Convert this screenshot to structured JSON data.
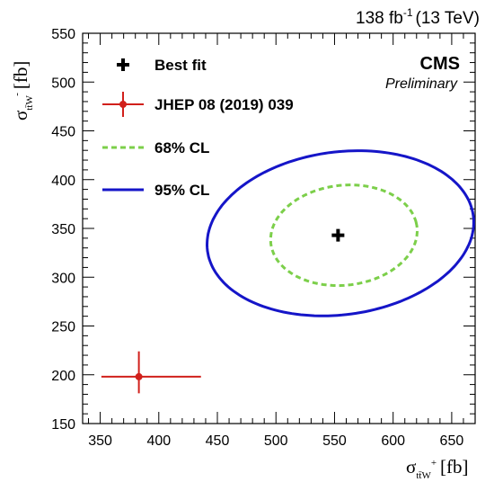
{
  "header": {
    "lumi_value": "138 fb",
    "lumi_exp": "-1",
    "lumi_energy": "(13 TeV)"
  },
  "labels": {
    "cms": "CMS",
    "preliminary": "Preliminary",
    "x_symbol": "σ",
    "x_sub": "tt̄W",
    "x_sup": "+",
    "x_unit": "[fb]",
    "y_symbol": "σ",
    "y_sub": "tt̄W",
    "y_sup": "-",
    "y_unit": "[fb]"
  },
  "colors": {
    "best_fit": "#000000",
    "reference": "#d1201b",
    "cl68": "#7ccf4a",
    "cl95": "#1515c8"
  },
  "chart_data": {
    "type": "scatter",
    "xlim": [
      335,
      670
    ],
    "ylim": [
      150,
      550
    ],
    "xticks": [
      350,
      400,
      450,
      500,
      550,
      600,
      650
    ],
    "yticks": [
      150,
      200,
      250,
      300,
      350,
      400,
      450,
      500,
      550
    ],
    "grid": false,
    "legend_position": "top-left",
    "legend": [
      {
        "label": "Best fit",
        "marker": "cross"
      },
      {
        "label": "JHEP 08 (2019) 039",
        "marker": "point-errorbar"
      },
      {
        "label": "68% CL",
        "marker": "dashed-line"
      },
      {
        "label": "95% CL",
        "marker": "solid-line"
      }
    ],
    "best_fit": {
      "x": 553,
      "y": 343
    },
    "reference": {
      "x": 383,
      "y": 198,
      "x_range": [
        351,
        436
      ],
      "y_range": [
        181,
        224
      ]
    },
    "contours": [
      {
        "name": "68% CL",
        "style": "dashed",
        "center": [
          558,
          343
        ],
        "radii": [
          63,
          51
        ],
        "tilt_deg": 12
      },
      {
        "name": "95% CL",
        "style": "solid",
        "center": [
          555,
          345
        ],
        "radii": [
          115,
          83
        ],
        "tilt_deg": 12
      }
    ]
  }
}
